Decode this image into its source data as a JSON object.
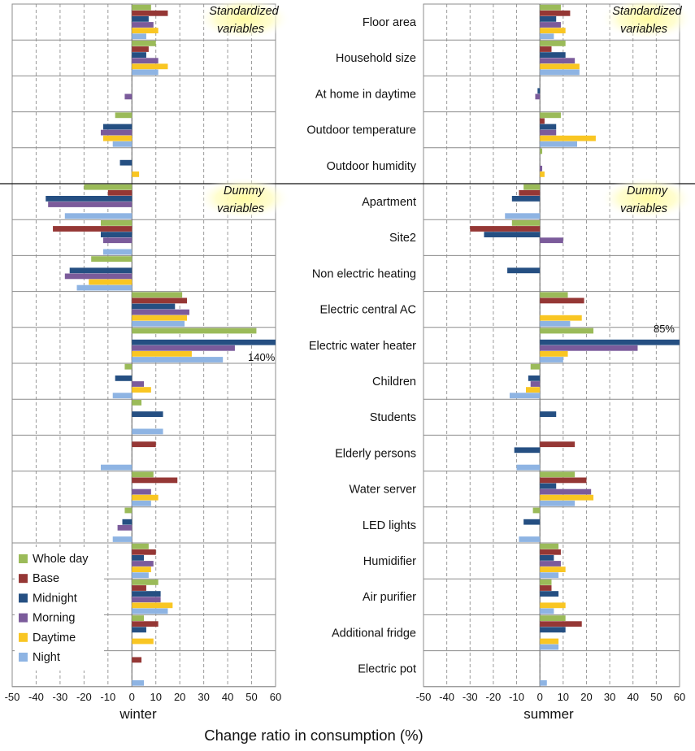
{
  "chart_data": {
    "type": "bar",
    "orientation": "horizontal",
    "xlabel": "Change ratio  in consumption (%)",
    "xlim": [
      -50,
      60
    ],
    "xticks": [
      "-50",
      "-40",
      "-30",
      "-20",
      "-10",
      "0",
      "10",
      "20",
      "30",
      "40",
      "50",
      "60"
    ],
    "grid": true,
    "legend_position": "bottom-left",
    "series": [
      {
        "name": "Whole day",
        "color": "#9BBB59"
      },
      {
        "name": "Base",
        "color": "#953735"
      },
      {
        "name": "Midnight",
        "color": "#254F82"
      },
      {
        "name": "Morning",
        "color": "#7B5B9B"
      },
      {
        "name": "Daytime",
        "color": "#F9C623"
      },
      {
        "name": "Night",
        "color": "#8EB4E3"
      }
    ],
    "categories": [
      "Floor area",
      "Household size",
      "At home in daytime",
      "Outdoor temperature",
      "Outdoor humidity",
      "Apartment",
      "Site2",
      "Non electric heating",
      "Electric central AC",
      "Electric water heater",
      "Children",
      "Students",
      "Elderly persons",
      "Water server",
      "LED lights",
      "Humidifier",
      "Air purifier",
      "Additional fridge",
      "Electric pot"
    ],
    "group_notes": [
      "Standardized variables",
      "Dummy variables"
    ],
    "panels": [
      {
        "name": "winter",
        "annotations": [
          {
            "category": "Electric water heater",
            "text": "140%"
          }
        ],
        "values": [
          [
            8,
            15,
            7,
            9,
            11,
            6
          ],
          [
            10,
            7,
            6,
            11,
            15,
            11
          ],
          [
            0,
            0,
            0,
            -3,
            0,
            0
          ],
          [
            -7,
            0,
            -12,
            -13,
            -12,
            -8
          ],
          [
            0,
            0,
            -5,
            0,
            3,
            0
          ],
          [
            -20,
            -10,
            -36,
            -35,
            0,
            -28
          ],
          [
            -13,
            -33,
            -13,
            -12,
            0,
            -12
          ],
          [
            -17,
            0,
            -26,
            -28,
            -18,
            -23
          ],
          [
            21,
            23,
            18,
            24,
            23,
            22
          ],
          [
            52,
            0,
            140,
            43,
            25,
            38
          ],
          [
            -3,
            0,
            -7,
            5,
            8,
            -8
          ],
          [
            4,
            0,
            13,
            0,
            0,
            13
          ],
          [
            0,
            10,
            0,
            0,
            0,
            -13
          ],
          [
            9,
            19,
            0,
            8,
            11,
            8
          ],
          [
            -3,
            0,
            -4,
            -6,
            0,
            -8
          ],
          [
            7,
            10,
            5,
            9,
            8,
            7
          ],
          [
            11,
            6,
            12,
            12,
            17,
            15
          ],
          [
            5,
            11,
            6,
            0,
            9,
            0
          ],
          [
            0,
            4,
            0,
            0,
            0,
            5
          ]
        ]
      },
      {
        "name": "summer",
        "annotations": [
          {
            "category": "Electric water heater",
            "text": "85%"
          }
        ],
        "values": [
          [
            9,
            13,
            7,
            9,
            11,
            6
          ],
          [
            11,
            5,
            11,
            15,
            17,
            17
          ],
          [
            0,
            0,
            -1,
            -2,
            0,
            0
          ],
          [
            9,
            2,
            7,
            7,
            24,
            16
          ],
          [
            1,
            0,
            0,
            1,
            2,
            0
          ],
          [
            -7,
            -9,
            -12,
            0,
            0,
            -15
          ],
          [
            -12,
            -30,
            -24,
            10,
            0,
            0
          ],
          [
            0,
            0,
            -14,
            0,
            0,
            0
          ],
          [
            12,
            19,
            0,
            0,
            18,
            13
          ],
          [
            23,
            0,
            85,
            42,
            12,
            10
          ],
          [
            -4,
            0,
            -5,
            -4,
            -6,
            -13
          ],
          [
            0,
            0,
            7,
            0,
            0,
            0
          ],
          [
            0,
            15,
            -11,
            0,
            0,
            -10
          ],
          [
            15,
            20,
            7,
            22,
            23,
            15
          ],
          [
            -3,
            0,
            -7,
            0,
            0,
            -9
          ],
          [
            8,
            9,
            6,
            9,
            11,
            8
          ],
          [
            5,
            5,
            8,
            0,
            11,
            6
          ],
          [
            11,
            18,
            11,
            0,
            8,
            8
          ],
          [
            0,
            0,
            0,
            0,
            0,
            3
          ]
        ]
      }
    ]
  }
}
